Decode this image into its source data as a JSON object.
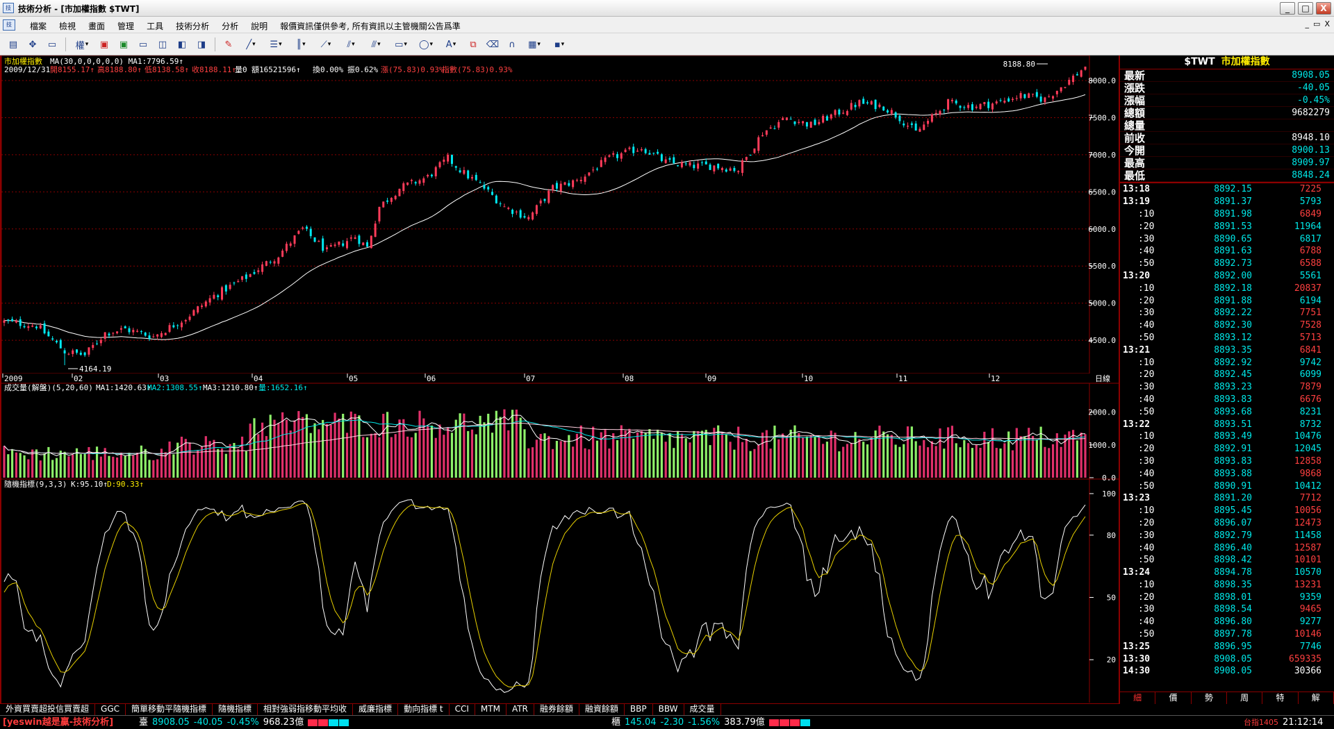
{
  "window": {
    "title": "技術分析 - [市加權指數 $TWT]",
    "buttons": [
      "_",
      "□",
      "X"
    ]
  },
  "menu": {
    "items": [
      "檔案",
      "檢視",
      "畫面",
      "管理",
      "工具",
      "技術分析",
      "分析",
      "說明"
    ],
    "notice": "報價資訊僅供參考, 所有資訊以主管機關公告爲準",
    "mdi_buttons": [
      "_",
      "▭",
      "X"
    ]
  },
  "toolbar": {
    "icons": [
      "bar-chart-icon",
      "crosshair-icon",
      "frame-icon",
      "period-dropdown",
      "candle-red-icon",
      "candle-green-icon",
      "window-icon",
      "layout-icon",
      "tile-icon",
      "tile2-icon",
      "draw-icon",
      "line-tool-icon",
      "text-tool-icon",
      "bars-tool-icon",
      "fan-tool-icon",
      "fib-tool-icon",
      "channel-tool-icon",
      "rect-tool-icon",
      "ellipse-tool-icon",
      "text-A-icon",
      "copy-icon",
      "eraser-icon",
      "magnet-icon",
      "color-icon",
      "save-icon"
    ],
    "period_label": "權"
  },
  "chart_info": {
    "symbol_line": "市加權指數 MA(30,0,0,0,0,0) MA1:7796.59↑",
    "symbol_name": "市加權指數",
    "ma_text": "MA(30,0,0,0,0,0) MA1:7796.59↑",
    "date": "2009/12/31",
    "open": "開8155.17↑",
    "high": "高8188.80↑",
    "low": "低8138.58↑",
    "close": "收8188.11↑",
    "qty": "量0",
    "amount": "額16521596↑",
    "turnover": "換0.00%",
    "amplitude": "振0.62%",
    "change": "漲(75.83)0.93%",
    "index_change": "指數(75.83)0.93%",
    "max_label": "8188.80",
    "min_label": "4164.19",
    "period_label": "日線"
  },
  "volume_info": {
    "title": "成交量(解盤)(5,20,60)",
    "ma1": "MA1:1420.63↑",
    "ma2": "MA2:1308.55↑",
    "ma3": "MA3:1210.80↑",
    "qty": "量:1652.16↑"
  },
  "kd_info": {
    "title": "隨機指標(9,3,3)",
    "k": "K:95.10↑",
    "d": "D:90.33↑"
  },
  "chart_data": [
    {
      "type": "candlestick",
      "title": "市加權指數",
      "x_labels": [
        "2009",
        "02",
        "03",
        "04",
        "05",
        "06",
        "07",
        "08",
        "09",
        "10",
        "11",
        "12"
      ],
      "y_ticks": [
        4500,
        5000,
        5500,
        6000,
        6500,
        7000,
        7500,
        8000
      ],
      "ylim": [
        4080,
        8300
      ],
      "monthly_close": [
        4248,
        4557,
        5211,
        6038,
        6891,
        6433,
        6830,
        6883,
        7509,
        7340,
        7582,
        8188
      ],
      "anchors": [
        [
          0,
          4750
        ],
        [
          8,
          4700
        ],
        [
          15,
          4350
        ],
        [
          20,
          4300
        ],
        [
          25,
          4600
        ],
        [
          30,
          4650
        ],
        [
          37,
          4550
        ],
        [
          45,
          4800
        ],
        [
          52,
          5100
        ],
        [
          60,
          5350
        ],
        [
          68,
          5650
        ],
        [
          74,
          6000
        ],
        [
          80,
          5700
        ],
        [
          87,
          5900
        ],
        [
          90,
          5750
        ],
        [
          93,
          6300
        ],
        [
          98,
          6550
        ],
        [
          105,
          6700
        ],
        [
          110,
          6950
        ],
        [
          114,
          6750
        ],
        [
          118,
          6600
        ],
        [
          124,
          6300
        ],
        [
          130,
          6150
        ],
        [
          136,
          6550
        ],
        [
          142,
          6650
        ],
        [
          150,
          6950
        ],
        [
          158,
          7100
        ],
        [
          164,
          6900
        ],
        [
          170,
          6850
        ],
        [
          176,
          6850
        ],
        [
          182,
          6800
        ],
        [
          188,
          7300
        ],
        [
          194,
          7500
        ],
        [
          200,
          7400
        ],
        [
          206,
          7550
        ],
        [
          212,
          7700
        ],
        [
          218,
          7650
        ],
        [
          222,
          7500
        ],
        [
          226,
          7300
        ],
        [
          230,
          7500
        ],
        [
          234,
          7700
        ],
        [
          240,
          7650
        ],
        [
          246,
          7700
        ],
        [
          252,
          7800
        ],
        [
          258,
          7750
        ],
        [
          264,
          8000
        ],
        [
          268,
          8188
        ]
      ],
      "count": 269,
      "ma30_last": 7796.59,
      "max": 8188.8,
      "min": 4164.19
    },
    {
      "type": "bar",
      "title": "成交量(解盤)(5,20,60)",
      "y_ticks": [
        0,
        1000,
        2000
      ],
      "ylim": [
        0,
        2500
      ],
      "series_names": [
        "MA1",
        "MA2",
        "MA3"
      ]
    },
    {
      "type": "line",
      "title": "隨機指標(9,3,3)",
      "y_ticks": [
        20,
        50,
        80,
        100
      ],
      "ylim": [
        0,
        105
      ],
      "series": [
        {
          "name": "K",
          "last": 95.1
        },
        {
          "name": "D",
          "last": 90.33
        }
      ]
    }
  ],
  "right_panel": {
    "symbol": "$TWT",
    "name": "市加權指數",
    "quotes": [
      {
        "label": "最新",
        "value": "8908.05",
        "color": "#00e8e8"
      },
      {
        "label": "漲跌",
        "value": "-40.05",
        "color": "#00e8e8"
      },
      {
        "label": "漲幅",
        "value": "-0.45%",
        "color": "#00e8e8"
      },
      {
        "label": "總額",
        "value": "9682279",
        "color": "#ffffff"
      },
      {
        "label": "總量",
        "value": "",
        "color": "#ffffff"
      },
      {
        "label": "前收",
        "value": "8948.10",
        "color": "#ffffff"
      },
      {
        "label": "今開",
        "value": "8900.13",
        "color": "#00e8e8"
      },
      {
        "label": "最高",
        "value": "8909.97",
        "color": "#00e8e8"
      },
      {
        "label": "最低",
        "value": "8848.24",
        "color": "#00e8e8"
      }
    ],
    "ticks": [
      {
        "t": "13:18",
        "p": "8892.15",
        "v": "7225",
        "c": "#ff4040",
        "min": true
      },
      {
        "t": "13:19",
        "p": "8891.37",
        "v": "5793",
        "c": "#00e8e8",
        "min": true
      },
      {
        "t": ":10",
        "p": "8891.98",
        "v": "6849",
        "c": "#ff4040"
      },
      {
        "t": ":20",
        "p": "8891.53",
        "v": "11964",
        "c": "#00e8e8"
      },
      {
        "t": ":30",
        "p": "8890.65",
        "v": "6817",
        "c": "#00e8e8"
      },
      {
        "t": ":40",
        "p": "8891.63",
        "v": "6788",
        "c": "#ff4040"
      },
      {
        "t": ":50",
        "p": "8892.73",
        "v": "6588",
        "c": "#ff4040"
      },
      {
        "t": "13:20",
        "p": "8892.00",
        "v": "5561",
        "c": "#00e8e8",
        "min": true
      },
      {
        "t": ":10",
        "p": "8892.18",
        "v": "20837",
        "c": "#ff4040"
      },
      {
        "t": ":20",
        "p": "8891.88",
        "v": "6194",
        "c": "#00e8e8"
      },
      {
        "t": ":30",
        "p": "8892.22",
        "v": "7751",
        "c": "#ff4040"
      },
      {
        "t": ":40",
        "p": "8892.30",
        "v": "7528",
        "c": "#ff4040"
      },
      {
        "t": ":50",
        "p": "8893.12",
        "v": "5713",
        "c": "#ff4040"
      },
      {
        "t": "13:21",
        "p": "8893.35",
        "v": "6841",
        "c": "#ff4040",
        "min": true
      },
      {
        "t": ":10",
        "p": "8892.92",
        "v": "9742",
        "c": "#00e8e8"
      },
      {
        "t": ":20",
        "p": "8892.45",
        "v": "6099",
        "c": "#00e8e8"
      },
      {
        "t": ":30",
        "p": "8893.23",
        "v": "7879",
        "c": "#ff4040"
      },
      {
        "t": ":40",
        "p": "8893.83",
        "v": "6676",
        "c": "#ff4040"
      },
      {
        "t": ":50",
        "p": "8893.68",
        "v": "8231",
        "c": "#00e8e8"
      },
      {
        "t": "13:22",
        "p": "8893.51",
        "v": "8732",
        "c": "#00e8e8",
        "min": true
      },
      {
        "t": ":10",
        "p": "8893.49",
        "v": "10476",
        "c": "#00e8e8"
      },
      {
        "t": ":20",
        "p": "8892.91",
        "v": "12045",
        "c": "#00e8e8"
      },
      {
        "t": ":30",
        "p": "8893.83",
        "v": "12858",
        "c": "#ff4040"
      },
      {
        "t": ":40",
        "p": "8893.88",
        "v": "9868",
        "c": "#ff4040"
      },
      {
        "t": ":50",
        "p": "8890.91",
        "v": "10412",
        "c": "#00e8e8"
      },
      {
        "t": "13:23",
        "p": "8891.20",
        "v": "7712",
        "c": "#ff4040",
        "min": true
      },
      {
        "t": ":10",
        "p": "8895.45",
        "v": "10056",
        "c": "#ff4040"
      },
      {
        "t": ":20",
        "p": "8896.07",
        "v": "12473",
        "c": "#ff4040"
      },
      {
        "t": ":30",
        "p": "8892.79",
        "v": "11458",
        "c": "#00e8e8"
      },
      {
        "t": ":40",
        "p": "8896.40",
        "v": "12587",
        "c": "#ff4040"
      },
      {
        "t": ":50",
        "p": "8898.42",
        "v": "10101",
        "c": "#ff4040"
      },
      {
        "t": "13:24",
        "p": "8894.78",
        "v": "10570",
        "c": "#00e8e8",
        "min": true
      },
      {
        "t": ":10",
        "p": "8898.35",
        "v": "13231",
        "c": "#ff4040"
      },
      {
        "t": ":20",
        "p": "8898.01",
        "v": "9359",
        "c": "#00e8e8"
      },
      {
        "t": ":30",
        "p": "8898.54",
        "v": "9465",
        "c": "#ff4040"
      },
      {
        "t": ":40",
        "p": "8896.80",
        "v": "9277",
        "c": "#00e8e8"
      },
      {
        "t": ":50",
        "p": "8897.78",
        "v": "10146",
        "c": "#ff4040"
      },
      {
        "t": "13:25",
        "p": "8896.95",
        "v": "7746",
        "c": "#00e8e8",
        "min": true
      },
      {
        "t": "13:30",
        "p": "8908.05",
        "v": "659335",
        "c": "#ff4040",
        "min": true
      },
      {
        "t": "14:30",
        "p": "8908.05",
        "v": "30366",
        "c": "#ffffff",
        "min": true
      }
    ],
    "tabs": [
      "細",
      "價",
      "勢",
      "周",
      "特",
      "解"
    ]
  },
  "indicator_tabs": [
    "外資買賣超投信買賣超",
    "GGC",
    "簡單移動平隨機指標",
    "隨機指標",
    "相對強弱指移動平均收",
    "威廉指標",
    "動向指標 t",
    "CCI",
    "MTM",
    "ATR",
    "融券餘額",
    "融資餘額",
    "BBP",
    "BBW",
    "成交量"
  ],
  "status": {
    "brand": "[yeswin越是贏-技術分析]",
    "taiex": {
      "label": "臺",
      "value": "8908.05",
      "chg": "-40.05",
      "pct": "-0.45%",
      "amt": "968.23億"
    },
    "otc": {
      "label": "櫃",
      "value": "145.04",
      "chg": "-2.30",
      "pct": "-1.56%",
      "amt": "383.79億"
    },
    "futures": "台指1405",
    "time": "21:12:14",
    "colors": {
      "up": "#ff3c3c",
      "down": "#00e8e8"
    }
  }
}
